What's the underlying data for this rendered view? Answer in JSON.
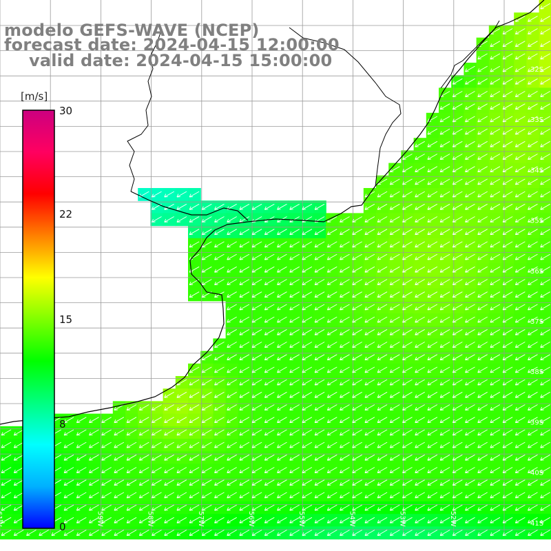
{
  "titles": {
    "model": "modelo GEFS-WAVE (NCEP)",
    "forecast": "forecast date: 2024-04-15 12:00:00",
    "valid": "valid date: 2024-04-15 15:00:00"
  },
  "colorbar": {
    "unit": "[m/s]",
    "ticks": [
      "0",
      "8",
      "15",
      "22",
      "30"
    ],
    "range": [
      0,
      30
    ],
    "colors": [
      "#0000ff",
      "#00b0ff",
      "#00ffff",
      "#00ff80",
      "#00ff00",
      "#80ff00",
      "#ffff00",
      "#ff8000",
      "#ff0000",
      "#ff0060",
      "#cc0080"
    ]
  },
  "map": {
    "lat_labels": [
      "32S",
      "33S",
      "34S",
      "35S",
      "36S",
      "37S",
      "38S",
      "39S",
      "40S",
      "41S"
    ],
    "lon_labels": [
      "61W",
      "60W",
      "59W",
      "58W",
      "57W",
      "56W",
      "55W",
      "54W",
      "53W",
      "52W"
    ],
    "land_color": "#ffffff",
    "grid_color": "#999999",
    "coast_color": "#000000",
    "arrow_color": "#ffffff"
  }
}
